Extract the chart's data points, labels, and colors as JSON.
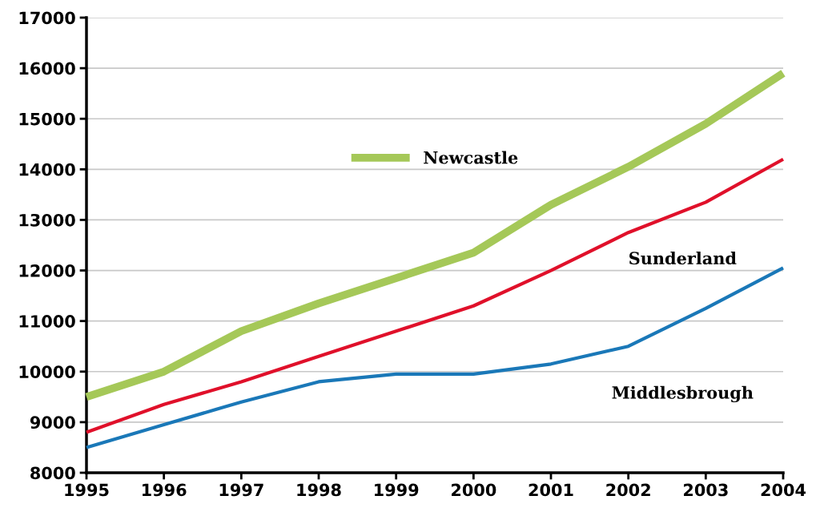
{
  "chart_data": {
    "type": "line",
    "x": [
      1995,
      1996,
      1997,
      1998,
      1999,
      2000,
      2001,
      2002,
      2003,
      2004
    ],
    "series": [
      {
        "name": "Newcastle",
        "color": "#a5c858",
        "values": [
          9500,
          10000,
          10800,
          11350,
          11850,
          12350,
          13300,
          14050,
          14900,
          15900
        ]
      },
      {
        "name": "Sunderland",
        "color": "#e0102a",
        "values": [
          8800,
          9350,
          9800,
          10300,
          10800,
          11300,
          12000,
          12750,
          13350,
          14200
        ]
      },
      {
        "name": "Middlesbrough",
        "color": "#1a78b8",
        "values": [
          8500,
          8950,
          9400,
          9800,
          9950,
          9950,
          10150,
          10500,
          11250,
          12050
        ]
      }
    ],
    "xlim": [
      1995,
      2004
    ],
    "xticks": [
      1995,
      1996,
      1997,
      1998,
      1999,
      2000,
      2001,
      2002,
      2003,
      2004
    ],
    "ylim": [
      8000,
      17000
    ],
    "yticks": [
      8000,
      9000,
      10000,
      11000,
      12000,
      13000,
      14000,
      15000,
      16000,
      17000
    ],
    "grid": "y",
    "legend": "top",
    "marker": "none",
    "line_style": "solid"
  }
}
